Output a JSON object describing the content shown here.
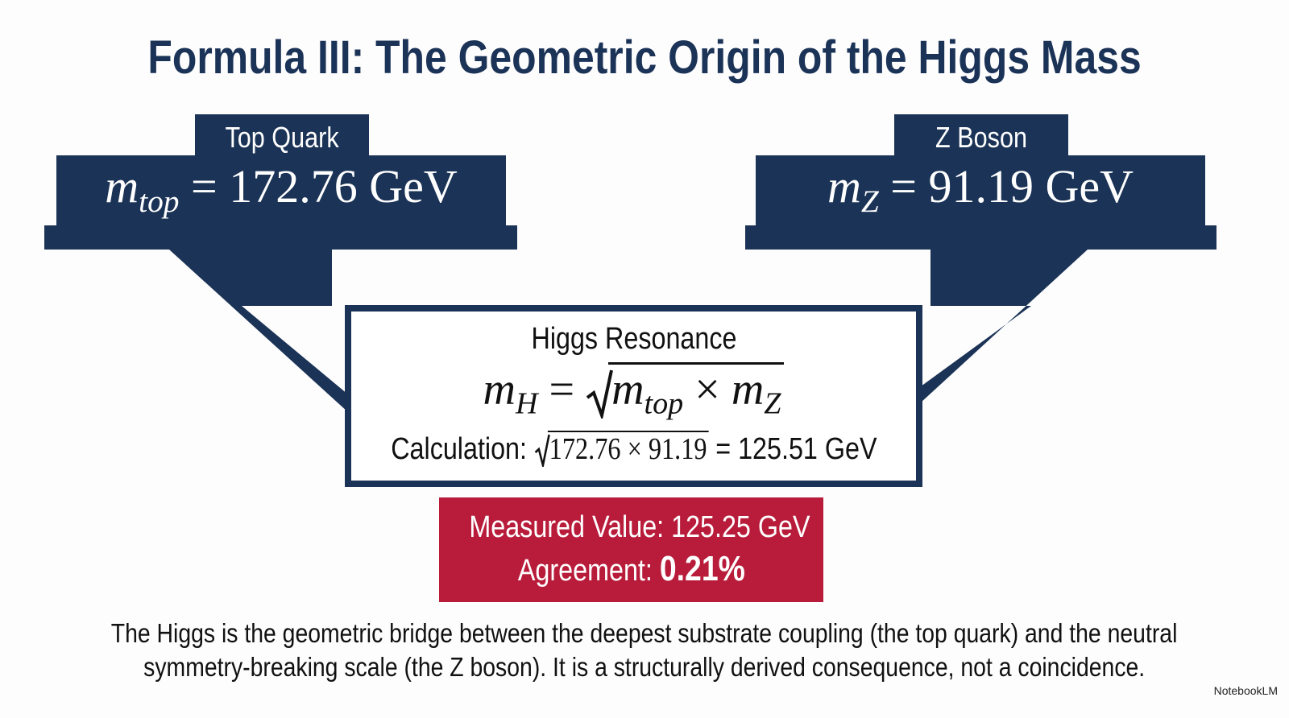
{
  "title": "Formula III: The Geometric Origin of the Higgs Mass",
  "inputs": [
    {
      "label": "Top Quark",
      "symbol": "m",
      "subscript": "top",
      "equals": "=",
      "value": "172.76 GeV"
    },
    {
      "label": "Z Boson",
      "symbol": "m",
      "subscript": "Z",
      "equals": "=",
      "value": "91.19 GeV"
    }
  ],
  "result": {
    "label": "Higgs Resonance",
    "formula": {
      "lhs_symbol": "m",
      "lhs_subscript": "H",
      "equals": "=",
      "a_symbol": "m",
      "a_subscript": "top",
      "times": "×",
      "b_symbol": "m",
      "b_subscript": "Z"
    },
    "calculation": {
      "label": "Calculation:",
      "a": "172.76",
      "times": "×",
      "b": "91.19",
      "equals": "=",
      "result": "125.51 GeV"
    }
  },
  "measurement": {
    "measured": "Measured Value: 125.25 GeV",
    "agreement_label": "Agreement:",
    "agreement_value": "0.21%"
  },
  "caption": {
    "lines": [
      "The Higgs is the geometric bridge between the deepest substrate coupling (the top quark) and the neutral",
      "symmetry-breaking scale (the Z boson). It is a structurally derived consequence, not a coincidence."
    ]
  },
  "watermark": "NotebookLM"
}
